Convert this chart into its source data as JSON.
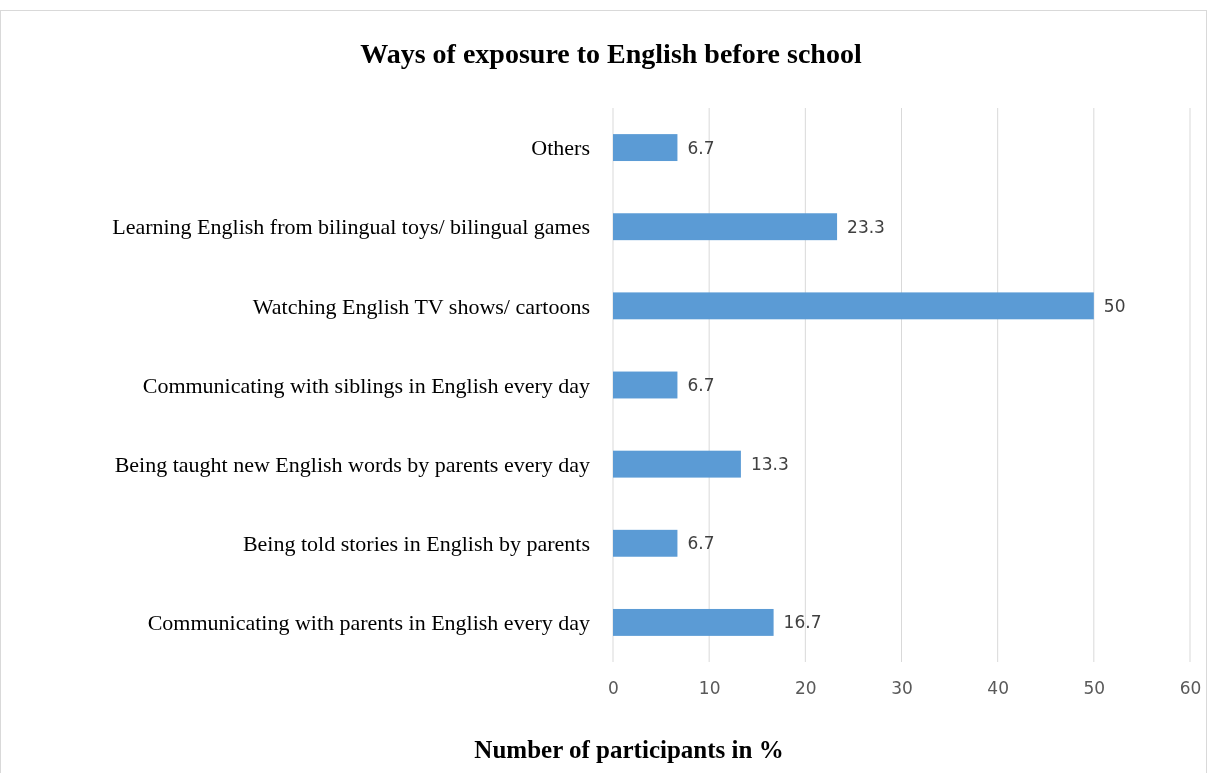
{
  "chart_data": {
    "type": "bar",
    "orientation": "horizontal",
    "title": "Ways of exposure to English before school",
    "xlabel": "Number of participants in %",
    "categories": [
      "Others",
      "Learning English from bilingual toys/ bilingual games",
      "Watching English TV shows/ cartoons",
      "Communicating with siblings in English every day",
      "Being taught new English words by parents every day",
      "Being told stories in English by parents",
      "Communicating with parents in English every day"
    ],
    "values": [
      6.7,
      23.3,
      50,
      6.7,
      13.3,
      6.7,
      16.7
    ],
    "color": "#5b9bd5",
    "xlim": [
      0,
      60
    ],
    "xticks": [
      0,
      10,
      20,
      30,
      40,
      50,
      60
    ],
    "grid": "x",
    "data_labels": true
  }
}
